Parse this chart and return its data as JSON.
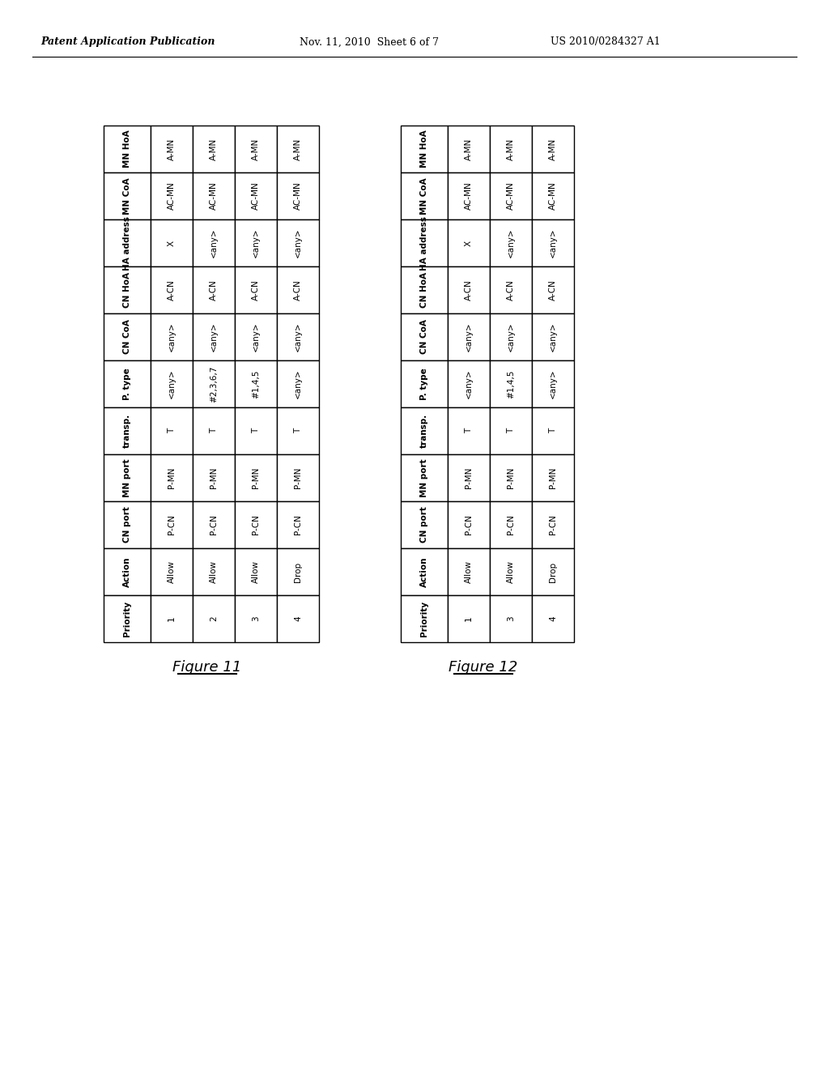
{
  "header_line1": "Patent Application Publication",
  "header_line2": "Nov. 11, 2010  Sheet 6 of 7",
  "header_line3": "US 2010/0284327 A1",
  "fig11_caption": "Figure 11",
  "fig12_caption": "Figure 12",
  "table1_headers": [
    "MN HoA",
    "MN CoA",
    "HA address",
    "CN HoA",
    "CN CoA",
    "P. type",
    "transp.",
    "MN port",
    "CN port",
    "Action",
    "Priority"
  ],
  "table1_data": [
    [
      "A-MN",
      "AC-MN",
      "X",
      "A-CN",
      "<any>",
      "<any>",
      "T",
      "P-MN",
      "P-CN",
      "Allow",
      "1"
    ],
    [
      "A-MN",
      "AC-MN",
      "<any>",
      "A-CN",
      "<any>",
      "#2,3,6,7",
      "T",
      "P-MN",
      "P-CN",
      "Allow",
      "2"
    ],
    [
      "A-MN",
      "AC-MN",
      "<any>",
      "A-CN",
      "<any>",
      "#1,4,5",
      "T",
      "P-MN",
      "P-CN",
      "Allow",
      "3"
    ],
    [
      "A-MN",
      "AC-MN",
      "<any>",
      "A-CN",
      "<any>",
      "<any>",
      "T",
      "P-MN",
      "P-CN",
      "Drop",
      "4"
    ]
  ],
  "table2_headers": [
    "MN HoA",
    "MN CoA",
    "HA address",
    "CN HoA",
    "CN CoA",
    "P. type",
    "transp.",
    "MN port",
    "CN port",
    "Action",
    "Priority"
  ],
  "table2_data": [
    [
      "A-MN",
      "AC-MN",
      "X",
      "A-CN",
      "<any>",
      "<any>",
      "T",
      "P-MN",
      "P-CN",
      "Allow",
      "1"
    ],
    [
      "A-MN",
      "AC-MN",
      "<any>",
      "A-CN",
      "<any>",
      "#1,4,5",
      "T",
      "P-MN",
      "P-CN",
      "Allow",
      "3"
    ],
    [
      "A-MN",
      "AC-MN",
      "<any>",
      "A-CN",
      "<any>",
      "<any>",
      "T",
      "P-MN",
      "P-CN",
      "Drop",
      "4"
    ]
  ],
  "bg_color": "#ffffff",
  "text_color": "#000000",
  "border_color": "#000000",
  "header_fontsize": 7.5,
  "cell_fontsize": 7.5,
  "caption_fontsize": 13,
  "page_header_fontsize": 9
}
